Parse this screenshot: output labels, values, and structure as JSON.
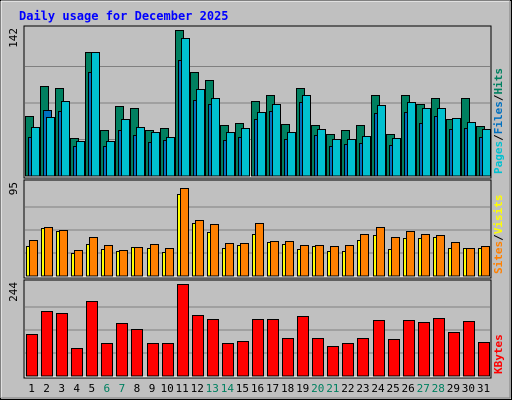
{
  "chart_data": {
    "type": "bar",
    "title": "Daily usage for December 2025",
    "categories": [
      "1",
      "2",
      "3",
      "4",
      "5",
      "6",
      "7",
      "8",
      "9",
      "10",
      "11",
      "12",
      "13",
      "14",
      "15",
      "16",
      "17",
      "18",
      "19",
      "20",
      "21",
      "22",
      "23",
      "24",
      "25",
      "26",
      "27",
      "28",
      "29",
      "30",
      "31"
    ],
    "weekend_days": [
      "6",
      "7",
      "13",
      "14",
      "20",
      "21",
      "27",
      "28"
    ],
    "panels": [
      {
        "id": "top",
        "max_label": "142",
        "ymax": 142,
        "right_labels": [
          {
            "text": "Pages",
            "color": "#00c0d0"
          },
          {
            "text": "Files",
            "color": "#0070c0"
          },
          {
            "text": "Hits",
            "color": "#008060"
          }
        ],
        "series": [
          {
            "name": "Hits",
            "color": "#008060",
            "values": [
              58,
              88,
              86,
              37,
              121,
              45,
              68,
              66,
              45,
              47,
              142,
              101,
              93,
              50,
              52,
              73,
              79,
              51,
              86,
              50,
              41,
              45,
              50,
              79,
              41,
              79,
              70,
              76,
              55,
              76,
              49
            ]
          },
          {
            "name": "Files",
            "color": "#0070c0",
            "values": [
              38,
              64,
              63,
              29,
              101,
              29,
              45,
              40,
              33,
              35,
              113,
              74,
              70,
              35,
              38,
              55,
              63,
              36,
              72,
              40,
              29,
              31,
              32,
              61,
              30,
              62,
              52,
              58,
              46,
              47,
              38
            ]
          },
          {
            "name": "Pages",
            "color": "#00c0d0",
            "values": [
              48,
              57,
              73,
              34,
              121,
              34,
              55,
              48,
              43,
              38,
              134,
              85,
              76,
              43,
              47,
              62,
              70,
              43,
              79,
              46,
              36,
              36,
              39,
              69,
              37,
              72,
              66,
              66,
              56,
              53,
              46
            ]
          }
        ]
      },
      {
        "id": "middle",
        "max_label": "95",
        "ymax": 95,
        "right_labels": [
          {
            "text": "Sites",
            "color": "#ff8000"
          },
          {
            "text": "Visits",
            "color": "#ffff00"
          }
        ],
        "series": [
          {
            "name": "Visits",
            "color": "#ffff00",
            "values": [
              31,
              50,
              46,
              24,
              33,
              28,
              26,
              30,
              29,
              25,
              85,
              55,
              45,
              29,
              32,
              43,
              35,
              33,
              28,
              31,
              26,
              26,
              37,
              42,
              28,
              39,
              39,
              40,
              29,
              29,
              29
            ]
          },
          {
            "name": "Sites",
            "color": "#ff8000",
            "values": [
              37,
              51,
              47,
              27,
              40,
              32,
              27,
              30,
              33,
              29,
              91,
              58,
              54,
              34,
              34,
              55,
              36,
              36,
              32,
              32,
              31,
              32,
              43,
              51,
              40,
              46,
              43,
              42,
              35,
              29,
              31
            ]
          }
        ]
      },
      {
        "id": "bottom",
        "max_label": "244",
        "ymax": 244,
        "right_labels": [
          {
            "text": "KBytes",
            "color": "#ff0000"
          }
        ],
        "series": [
          {
            "name": "KBytes",
            "color": "#ff0000",
            "values": [
              112,
              172,
              168,
              75,
              200,
              88,
              140,
              125,
              87,
              88,
              244,
              162,
              151,
              88,
              92,
              150,
              152,
              102,
              158,
              100,
              79,
              88,
              102,
              149,
              97,
              148,
              143,
              155,
              118,
              145,
              90
            ]
          }
        ]
      }
    ],
    "colors": {
      "title": "#0000ff",
      "day_weekday": "#000000",
      "day_weekend": "#008060",
      "background": "#c0c0c0",
      "plot_background": "#c0c0c0",
      "gridline": "#808080",
      "bar_outline": "#000000"
    }
  }
}
